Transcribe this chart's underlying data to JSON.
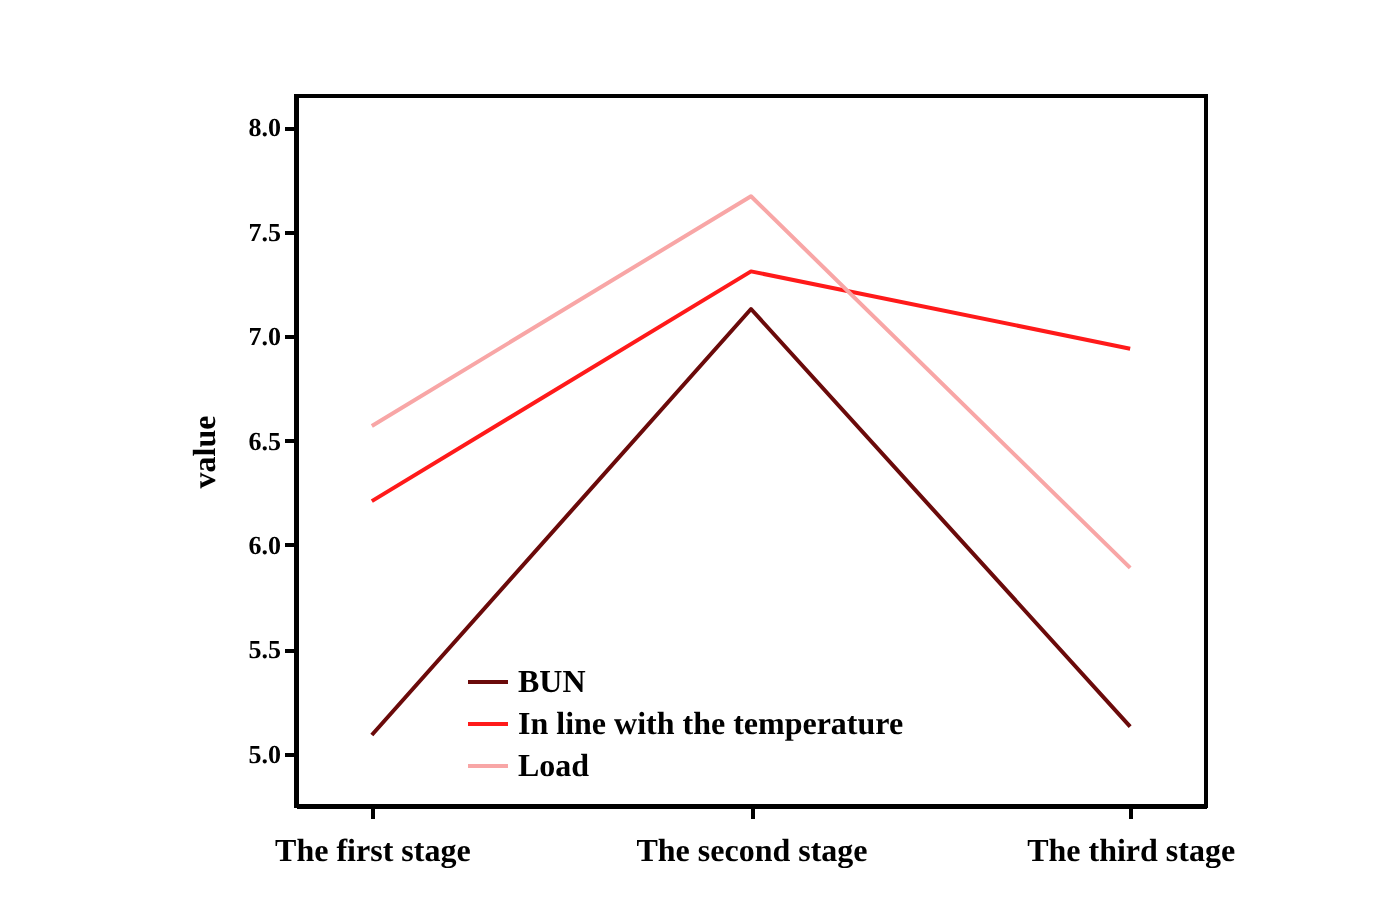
{
  "chart_data": {
    "type": "line",
    "ylabel": "value",
    "categories": [
      "The first stage",
      "The second stage",
      "The third stage"
    ],
    "series": [
      {
        "name": "BUN",
        "color": "#6b0a0a",
        "values": [
          5.09,
          7.13,
          5.13
        ]
      },
      {
        "name": "In line with the temperature",
        "color": "#ff1a1a",
        "values": [
          6.21,
          7.31,
          6.94
        ]
      },
      {
        "name": "Load",
        "color": "#f8a6a6",
        "values": [
          6.57,
          7.67,
          5.89
        ]
      }
    ],
    "ylim": [
      4.75,
      8.15
    ],
    "yticks": [
      {
        "value": 5,
        "label": "5.0"
      },
      {
        "value": 5.5,
        "label": "5.5"
      },
      {
        "value": 6,
        "label": "6.0"
      },
      {
        "value": 6.5,
        "label": "6.5"
      },
      {
        "value": 7,
        "label": "7.0"
      },
      {
        "value": 7.5,
        "label": "7.5"
      },
      {
        "value": 8,
        "label": "8.0"
      }
    ],
    "grid": false,
    "legend": "bottom left",
    "marker": "none",
    "line_style": "solid"
  }
}
